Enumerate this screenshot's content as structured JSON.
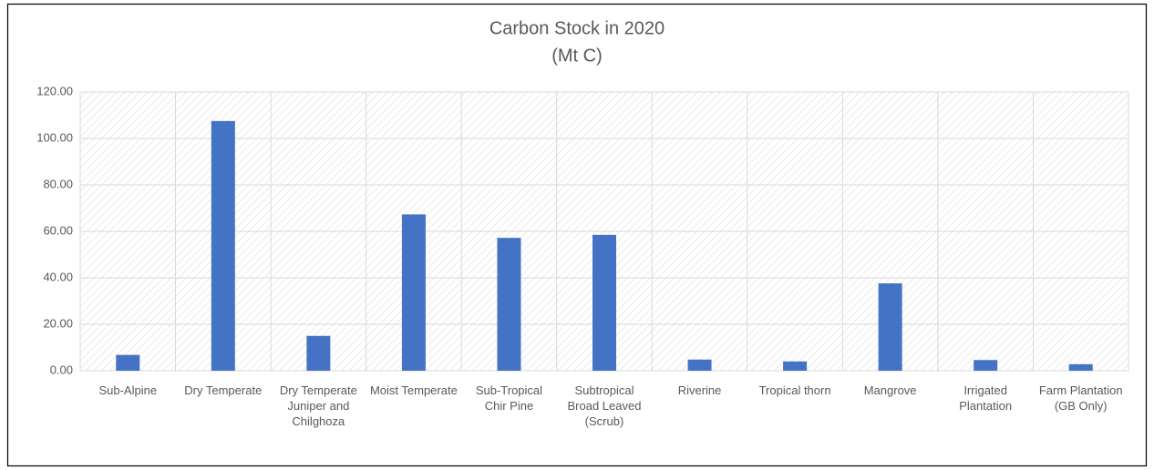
{
  "chart_data": {
    "type": "bar",
    "title": "Carbon Stock in 2020",
    "subtitle": "(Mt C)",
    "categories": [
      "Sub-Alpine",
      "Dry Temperate",
      "Dry Temperate Juniper and Chilghoza",
      "Moist Temperate",
      "Sub-Tropical Chir Pine",
      "Subtropical Broad Leaved (Scrub)",
      "Riverine",
      "Tropical thorn",
      "Mangrove",
      "Irrigated Plantation",
      "Farm Plantation (GB Only)"
    ],
    "values": [
      6.8,
      107.5,
      15.0,
      67.3,
      57.2,
      58.5,
      4.8,
      4.0,
      37.6,
      4.6,
      2.8
    ],
    "color": "#4472c4",
    "ylim": [
      0,
      120
    ],
    "yticks": [
      {
        "value": 0,
        "label": "0.00"
      },
      {
        "value": 20,
        "label": "20.00"
      },
      {
        "value": 40,
        "label": "40.00"
      },
      {
        "value": 60,
        "label": "60.00"
      },
      {
        "value": 80,
        "label": "80.00"
      },
      {
        "value": 100,
        "label": "100.00"
      },
      {
        "value": 120,
        "label": "120.00"
      }
    ],
    "grid": true
  }
}
